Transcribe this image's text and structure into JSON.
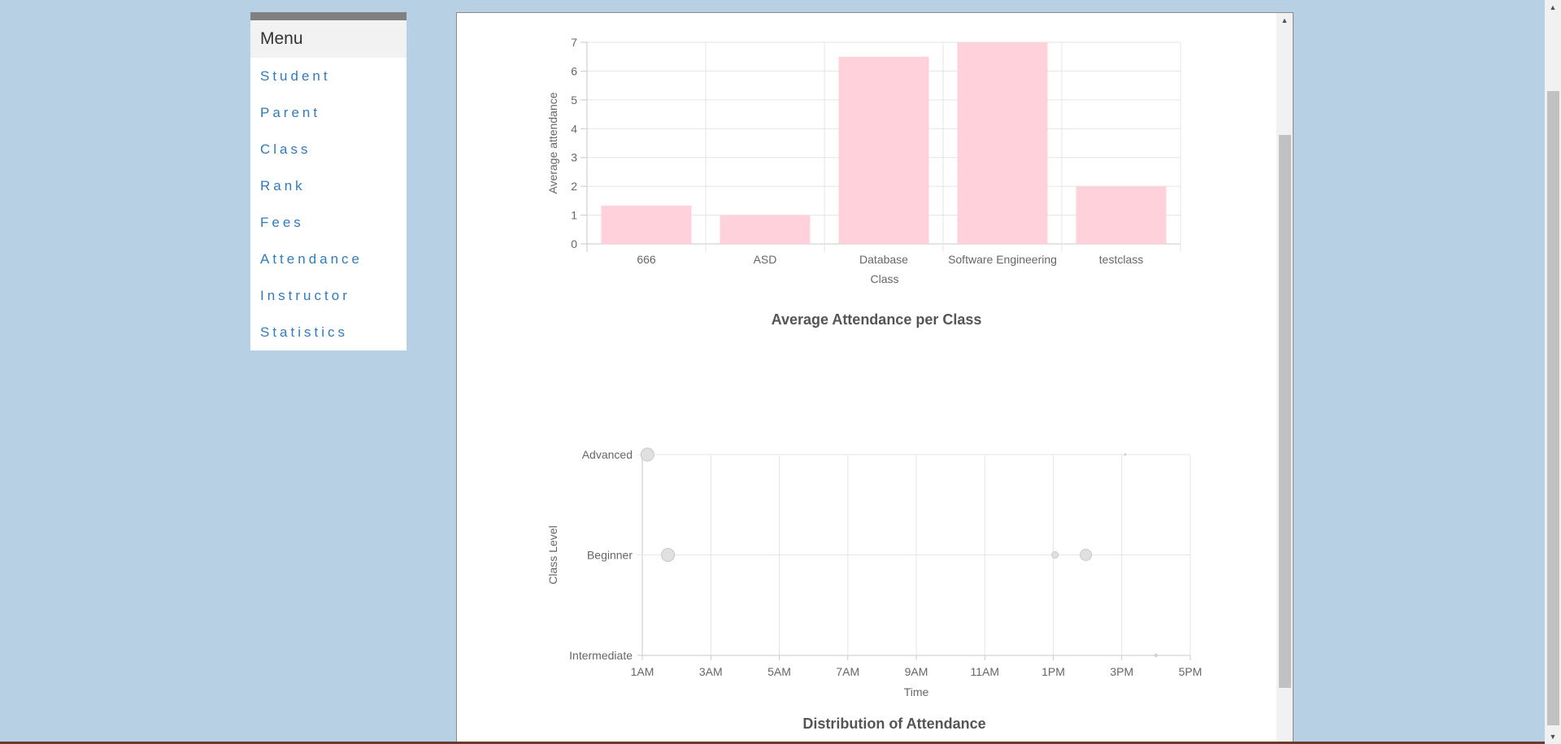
{
  "sidebar": {
    "menu_title": "Menu",
    "items": [
      {
        "label": "Student"
      },
      {
        "label": "Parent"
      },
      {
        "label": "Class"
      },
      {
        "label": "Rank"
      },
      {
        "label": "Fees"
      },
      {
        "label": "Attendance"
      },
      {
        "label": "Instructor"
      },
      {
        "label": "Statistics"
      }
    ]
  },
  "colors": {
    "background": "#b8d0e4",
    "bar_fill": "#ffd1da",
    "bubble_fill": "#e0e0e0",
    "menu_link": "#2f7bbf"
  },
  "chart_data": [
    {
      "type": "bar",
      "title": "Average Attendance per Class",
      "xlabel": "Class",
      "ylabel": "Average attendance",
      "categories": [
        "666",
        "ASD",
        "Database",
        "Software Engineering",
        "testclass"
      ],
      "values": [
        1.33,
        1,
        6.5,
        7,
        2
      ],
      "ylim": [
        0,
        7
      ],
      "yticks": [
        "0",
        "1",
        "2",
        "3",
        "4",
        "5",
        "6",
        "7"
      ],
      "grid": true
    },
    {
      "type": "scatter",
      "title": "Distribution of Attendance",
      "xlabel": "Time",
      "ylabel": "Class Level",
      "xticks": [
        "1AM",
        "3AM",
        "5AM",
        "7AM",
        "9AM",
        "11AM",
        "1PM",
        "3PM",
        "5PM"
      ],
      "xlim": [
        1,
        17
      ],
      "categories_y": [
        "Advanced",
        "Beginner",
        "Intermediate"
      ],
      "points": [
        {
          "x": 1.15,
          "y": "Advanced",
          "r": 8
        },
        {
          "x": 15.1,
          "y": "Advanced",
          "r": 1
        },
        {
          "x": 1.75,
          "y": "Beginner",
          "r": 8
        },
        {
          "x": 13.05,
          "y": "Beginner",
          "r": 4
        },
        {
          "x": 13.95,
          "y": "Beginner",
          "r": 7
        },
        {
          "x": 16,
          "y": "Intermediate",
          "r": 1.5
        }
      ],
      "grid": true
    }
  ]
}
